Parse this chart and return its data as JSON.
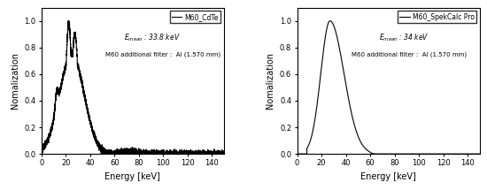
{
  "left": {
    "legend_label": "M60_CdTe",
    "ann1": "E$_{mean}$ : 33.8 keV",
    "ann2": "M60 additional filter :  Al (1.570 mm)",
    "xlabel": "Energy [keV]",
    "ylabel": "Nomalization",
    "xlim": [
      0,
      150
    ],
    "ylim": [
      0,
      1.1
    ],
    "xticks": [
      0,
      20,
      40,
      60,
      80,
      100,
      120,
      140
    ],
    "yticks": [
      0.0,
      0.2,
      0.4,
      0.6,
      0.8,
      1.0
    ]
  },
  "right": {
    "legend_label": "M60_SpekCalc Pro",
    "ann1": "E$_{mean}$ : 34 keV",
    "ann2": "M60 additional filter :  Al (1.570 mm)",
    "xlabel": "Energy [keV]",
    "ylabel": "Nomalization",
    "xlim": [
      0,
      150
    ],
    "ylim": [
      0,
      1.1
    ],
    "xticks": [
      0,
      20,
      40,
      60,
      80,
      100,
      120,
      140
    ],
    "yticks": [
      0.0,
      0.2,
      0.4,
      0.6,
      0.8,
      1.0
    ]
  },
  "line_color": "#000000",
  "line_width": 0.8
}
